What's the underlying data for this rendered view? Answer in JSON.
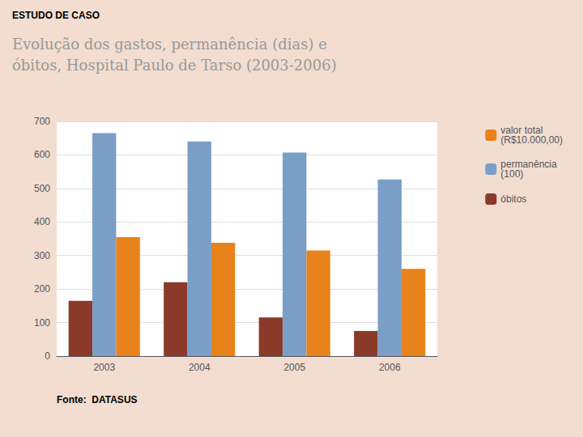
{
  "chart_data": {
    "type": "bar",
    "title": "ESTUDO DE CASO",
    "subtitle": "Evolução dos gastos, permanência (dias) e\nóbitos, Hospital Paulo de Tarso (2003-2006)",
    "annotations": [
      "Fonte:  DATASUS"
    ],
    "categories": [
      "2003",
      "2004",
      "2005",
      "2006"
    ],
    "series": [
      {
        "name": "óbitos",
        "color": "#8B3A2A",
        "values": [
          165,
          220,
          115,
          75
        ]
      },
      {
        "name": "permanência\n(100)",
        "color": "#7B9EC7",
        "values": [
          665,
          640,
          607,
          527
        ]
      },
      {
        "name": "valor total\n(R$10.000,00)",
        "color": "#E8821A",
        "values": [
          355,
          338,
          315,
          260
        ]
      }
    ],
    "ylim": [
      0,
      700
    ],
    "yticks": [
      0,
      100,
      200,
      300,
      400,
      500,
      600,
      700
    ],
    "grid": true,
    "legend": "right"
  }
}
